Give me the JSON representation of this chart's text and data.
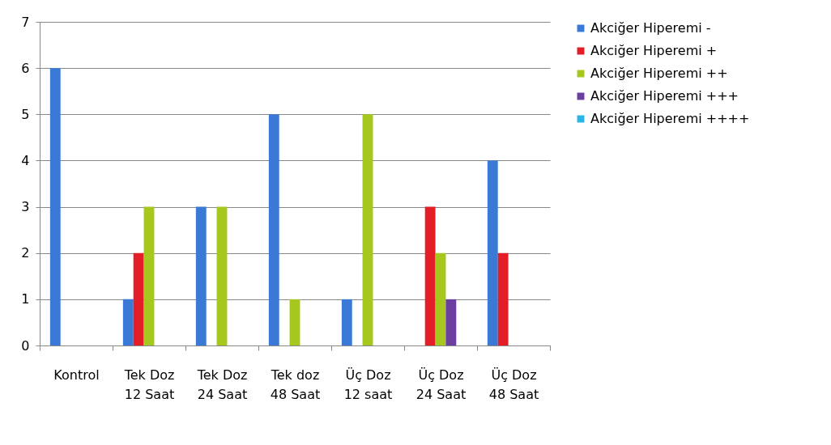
{
  "chart_data": {
    "type": "bar",
    "categories": [
      "Kontrol",
      "Tek Doz\n12 Saat",
      "Tek Doz\n24 Saat",
      "Tek doz\n48 Saat",
      "Üç Doz\n12 saat",
      "Üç Doz\n24 Saat",
      "Üç Doz\n48 Saat"
    ],
    "series": [
      {
        "name": "Akciğer Hiperemi -",
        "color": "#3a7ad6",
        "values": [
          6,
          1,
          3,
          5,
          1,
          0,
          4
        ]
      },
      {
        "name": "Akciğer Hiperemi +",
        "color": "#e41e26",
        "values": [
          0,
          2,
          0,
          0,
          0,
          3,
          2
        ]
      },
      {
        "name": "Akciğer Hiperemi ++",
        "color": "#a6c81e",
        "values": [
          0,
          3,
          3,
          1,
          5,
          2,
          0
        ]
      },
      {
        "name": "Akciğer Hiperemi +++",
        "color": "#6a3fa0",
        "values": [
          0,
          0,
          0,
          0,
          0,
          1,
          0
        ]
      },
      {
        "name": "Akciğer Hiperemi ++++",
        "color": "#29b5e8",
        "values": [
          0,
          0,
          0,
          0,
          0,
          0,
          0
        ]
      }
    ],
    "ylim": [
      0,
      7
    ],
    "yticks": [
      0,
      1,
      2,
      3,
      4,
      5,
      6,
      7
    ],
    "grid": "y",
    "legend": "right"
  }
}
